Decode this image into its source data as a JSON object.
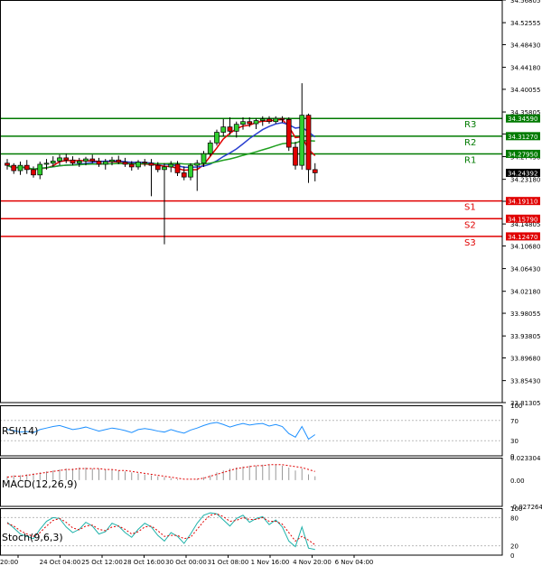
{
  "chart_data": {
    "type": "candlestick",
    "price_axis": {
      "ylim": [
        33.81305,
        34.56805
      ],
      "ticks": [
        "34.56805",
        "34.52555",
        "34.48430",
        "34.44180",
        "34.40055",
        "34.35805",
        "34.31680",
        "34.27430",
        "34.23180",
        "34.19055",
        "34.14805",
        "34.10680",
        "34.06430",
        "34.02180",
        "33.98055",
        "33.93805",
        "33.89680",
        "33.85430",
        "33.81305"
      ]
    },
    "time_axis": {
      "labels": [
        "20:00",
        "24 Oct 04:00",
        "25 Oct 12:00",
        "28 Oct 16:00",
        "30 Oct 00:00",
        "31 Oct 08:00",
        "1 Nov 16:00",
        "4 Nov 20:00",
        "6 Nov 04:00"
      ]
    },
    "current_price": "34.24392",
    "levels": [
      {
        "name": "R3",
        "value": 34.3459,
        "label": "34.34590",
        "color": "#007a00"
      },
      {
        "name": "R2",
        "value": 34.3127,
        "label": "34.31270",
        "color": "#007a00"
      },
      {
        "name": "R1",
        "value": 34.2795,
        "label": "34.27950",
        "color": "#007a00"
      },
      {
        "name": "S1",
        "value": 34.1911,
        "label": "34.19110",
        "color": "#e00000"
      },
      {
        "name": "S2",
        "value": 34.1579,
        "label": "34.15790",
        "color": "#e00000"
      },
      {
        "name": "S3",
        "value": 34.1247,
        "label": "34.12470",
        "color": "#e00000"
      }
    ],
    "candles": [
      [
        34.262,
        34.27,
        34.25,
        34.258
      ],
      [
        34.258,
        34.262,
        34.242,
        34.248
      ],
      [
        34.248,
        34.265,
        34.24,
        34.258
      ],
      [
        34.258,
        34.268,
        34.242,
        34.25
      ],
      [
        34.25,
        34.256,
        34.235,
        34.24
      ],
      [
        34.24,
        34.265,
        34.232,
        34.26
      ],
      [
        34.26,
        34.27,
        34.25,
        34.262
      ],
      [
        34.262,
        34.275,
        34.255,
        34.266
      ],
      [
        34.266,
        34.278,
        34.258,
        34.272
      ],
      [
        34.272,
        34.28,
        34.262,
        34.268
      ],
      [
        34.268,
        34.275,
        34.258,
        34.262
      ],
      [
        34.262,
        34.272,
        34.255,
        34.266
      ],
      [
        34.266,
        34.274,
        34.258,
        34.27
      ],
      [
        34.27,
        34.278,
        34.262,
        34.266
      ],
      [
        34.266,
        34.272,
        34.255,
        34.26
      ],
      [
        34.26,
        34.27,
        34.25,
        34.265
      ],
      [
        34.265,
        34.274,
        34.258,
        34.268
      ],
      [
        34.268,
        34.276,
        34.26,
        34.264
      ],
      [
        34.264,
        34.272,
        34.255,
        34.26
      ],
      [
        34.26,
        34.266,
        34.248,
        34.255
      ],
      [
        34.255,
        34.268,
        34.25,
        34.264
      ],
      [
        34.264,
        34.27,
        34.256,
        34.262
      ],
      [
        34.262,
        34.27,
        34.2,
        34.258
      ],
      [
        34.258,
        34.264,
        34.245,
        34.25
      ],
      [
        34.25,
        34.262,
        34.11,
        34.255
      ],
      [
        34.255,
        34.266,
        34.245,
        34.26
      ],
      [
        34.26,
        34.266,
        34.238,
        34.244
      ],
      [
        34.244,
        34.256,
        34.23,
        34.236
      ],
      [
        34.236,
        34.262,
        34.23,
        34.258
      ],
      [
        34.258,
        34.268,
        34.21,
        34.262
      ],
      [
        34.262,
        34.285,
        34.255,
        34.28
      ],
      [
        34.28,
        34.305,
        34.275,
        34.3
      ],
      [
        34.3,
        34.325,
        34.295,
        34.32
      ],
      [
        34.32,
        34.345,
        34.312,
        34.33
      ],
      [
        34.33,
        34.348,
        34.315,
        34.322
      ],
      [
        34.322,
        34.34,
        34.31,
        34.335
      ],
      [
        34.335,
        34.348,
        34.325,
        34.34
      ],
      [
        34.34,
        34.348,
        34.33,
        34.336
      ],
      [
        34.336,
        34.346,
        34.326,
        34.342
      ],
      [
        34.342,
        34.35,
        34.332,
        34.345
      ],
      [
        34.345,
        34.35,
        34.336,
        34.34
      ],
      [
        34.34,
        34.35,
        34.336,
        34.346
      ],
      [
        34.346,
        34.35,
        34.338,
        34.344
      ],
      [
        34.344,
        34.348,
        34.285,
        34.292
      ],
      [
        34.292,
        34.302,
        34.25,
        34.258
      ],
      [
        34.258,
        34.412,
        34.25,
        34.352
      ],
      [
        34.352,
        34.355,
        34.225,
        34.25
      ],
      [
        34.25,
        34.262,
        34.228,
        34.244
      ]
    ],
    "rsi": {
      "label": "RSI(14)",
      "ticks": [
        "100",
        "70",
        "30",
        "0"
      ],
      "ylim": [
        0,
        100
      ],
      "values": [
        52,
        50,
        47,
        48,
        46,
        52,
        55,
        58,
        60,
        56,
        52,
        54,
        57,
        53,
        49,
        52,
        55,
        53,
        50,
        46,
        52,
        54,
        52,
        49,
        47,
        52,
        48,
        45,
        51,
        55,
        60,
        64,
        66,
        62,
        57,
        61,
        64,
        61,
        63,
        64,
        59,
        62,
        58,
        44,
        37,
        58,
        33,
        42
      ]
    },
    "macd": {
      "label": "MACD(12,26,9)",
      "ticks": [
        "0.023304",
        "0.00",
        "-0.027264"
      ],
      "ylim": [
        -0.027264,
        0.023304
      ],
      "hist": [
        0.004,
        0.005,
        0.005,
        0.006,
        0.007,
        0.008,
        0.009,
        0.01,
        0.011,
        0.012,
        0.012,
        0.013,
        0.013,
        0.012,
        0.012,
        0.011,
        0.011,
        0.01,
        0.009,
        0.008,
        0.007,
        0.006,
        0.005,
        0.004,
        0.003,
        0.002,
        0.001,
        0.0,
        0.0,
        0.001,
        0.003,
        0.005,
        0.008,
        0.01,
        0.012,
        0.013,
        0.014,
        0.015,
        0.015,
        0.016,
        0.016,
        0.016,
        0.015,
        0.013,
        0.01,
        0.012,
        0.006,
        0.004
      ],
      "signal": [
        0.003,
        0.004,
        0.004,
        0.005,
        0.006,
        0.007,
        0.008,
        0.009,
        0.01,
        0.011,
        0.011,
        0.012,
        0.012,
        0.012,
        0.012,
        0.011,
        0.011,
        0.01,
        0.01,
        0.009,
        0.008,
        0.007,
        0.006,
        0.005,
        0.004,
        0.003,
        0.002,
        0.001,
        0.001,
        0.001,
        0.002,
        0.004,
        0.006,
        0.008,
        0.01,
        0.012,
        0.013,
        0.014,
        0.015,
        0.015,
        0.016,
        0.016,
        0.016,
        0.015,
        0.014,
        0.013,
        0.011,
        0.009
      ]
    },
    "stoch": {
      "label": "Stoch(9,6,3)",
      "ticks": [
        "100",
        "80",
        "20",
        "0"
      ],
      "ylim": [
        0,
        100
      ],
      "k": [
        70,
        58,
        45,
        40,
        35,
        55,
        72,
        80,
        78,
        60,
        48,
        55,
        70,
        62,
        45,
        50,
        68,
        62,
        48,
        38,
        55,
        68,
        60,
        42,
        30,
        48,
        40,
        25,
        45,
        68,
        85,
        90,
        88,
        75,
        62,
        78,
        85,
        70,
        78,
        82,
        65,
        75,
        60,
        30,
        18,
        60,
        15,
        12
      ],
      "d": [
        68,
        62,
        52,
        45,
        40,
        48,
        62,
        74,
        78,
        70,
        58,
        54,
        62,
        64,
        55,
        52,
        60,
        62,
        55,
        45,
        50,
        60,
        62,
        52,
        40,
        42,
        42,
        35,
        38,
        55,
        72,
        85,
        88,
        82,
        72,
        74,
        80,
        76,
        76,
        80,
        72,
        72,
        66,
        48,
        30,
        40,
        32,
        22
      ]
    }
  }
}
